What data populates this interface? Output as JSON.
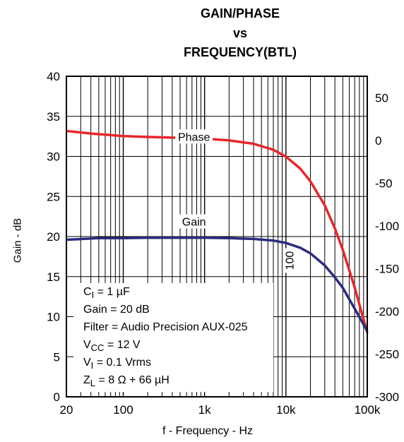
{
  "chart_data": {
    "type": "line",
    "title_lines": [
      "GAIN/PHASE",
      "vs",
      "FREQUENCY(BTL)"
    ],
    "xlabel": "f - Frequency - Hz",
    "ylabel": "Gain - dB",
    "x_scale": "log",
    "xlim": [
      20,
      100000
    ],
    "ylim": [
      0,
      40
    ],
    "y2lim": [
      -300,
      75
    ],
    "x_ticks": [
      20,
      100,
      1000,
      10000,
      100000
    ],
    "x_tick_labels": [
      "20",
      "100",
      "1k",
      "10k",
      "100k"
    ],
    "y_ticks": [
      0,
      5,
      10,
      15,
      20,
      25,
      30,
      35,
      40
    ],
    "y_tick_labels": [
      "0",
      "5",
      "10",
      "15",
      "20",
      "25",
      "30",
      "35",
      "40"
    ],
    "y2_ticks": [
      50,
      0,
      -50,
      -100,
      -150,
      -200,
      -250,
      -300
    ],
    "y2_tick_labels": [
      "50",
      "0",
      "-50",
      "-100",
      "-150",
      "-200",
      "-250",
      "-300"
    ],
    "grid": true,
    "series": [
      {
        "name": "Phase",
        "axis": "right",
        "color": "#e8262b",
        "x": [
          20,
          40,
          100,
          200,
          500,
          1000,
          2000,
          4000,
          7000,
          10000,
          15000,
          20000,
          30000,
          40000,
          50000,
          70000,
          100000
        ],
        "values": [
          11,
          8,
          5,
          4,
          3,
          2,
          0,
          -4,
          -11,
          -19,
          -33,
          -48,
          -76,
          -103,
          -128,
          -172,
          -225
        ]
      },
      {
        "name": "Gain",
        "axis": "left",
        "color": "#2b2c7e",
        "x": [
          20,
          50,
          100,
          200,
          500,
          1000,
          2000,
          4000,
          7000,
          10000,
          15000,
          20000,
          30000,
          40000,
          50000,
          70000,
          100000
        ],
        "values": [
          19.6,
          19.8,
          19.8,
          19.85,
          19.85,
          19.85,
          19.8,
          19.7,
          19.5,
          19.2,
          18.6,
          17.9,
          16.4,
          14.9,
          13.6,
          11.0,
          8.2
        ]
      }
    ],
    "annotations": {
      "phase_label": "Phase",
      "gain_label": "Gain",
      "marker_100": "100",
      "conditions": [
        {
          "pre": "C",
          "sub": "I",
          "post": " = 1 µF"
        },
        {
          "pre": "Gain = 20 dB",
          "sub": "",
          "post": ""
        },
        {
          "pre": "Filter = Audio Precision AUX-025",
          "sub": "",
          "post": ""
        },
        {
          "pre": "V",
          "sub": "CC",
          "post": " = 12 V"
        },
        {
          "pre": "V",
          "sub": "I",
          "post": " = 0.1 Vrms"
        },
        {
          "pre": "Z",
          "sub": "L",
          "post": " = 8 Ω + 66 µH"
        }
      ]
    }
  }
}
